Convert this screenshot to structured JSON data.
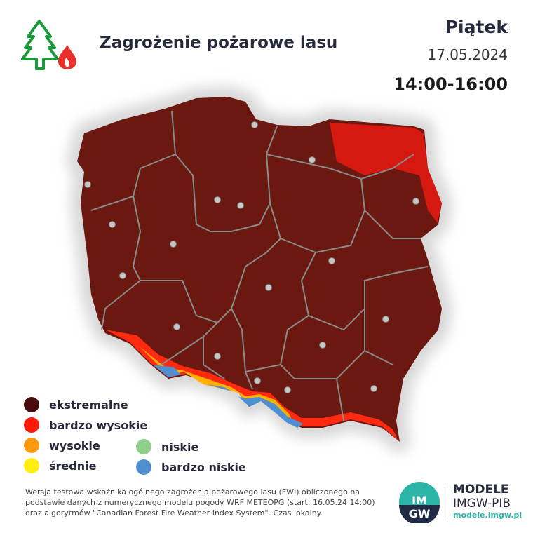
{
  "header": {
    "title": "Zagrożenie pożarowe lasu",
    "day": "Piątek",
    "date": "17.05.2024",
    "time_range": "14:00-16:00",
    "icon": "tree-fire-icon"
  },
  "legend": [
    {
      "label": "ekstremalne",
      "color": "#4a0c0a"
    },
    {
      "label": "bardzo wysokie",
      "color": "#ff1a0a"
    },
    {
      "label": "wysokie",
      "color": "#ff9a10"
    },
    {
      "label": "średnie",
      "color": "#ffee10"
    },
    {
      "label": "niskie",
      "color": "#8fcf8a"
    },
    {
      "label": "bardzo niskie",
      "color": "#4f8fd0"
    }
  ],
  "map": {
    "dominant_color": "#6b1810"
  },
  "footer": {
    "line1": "Wersja testowa wskaźnika ogólnego zagrożenia pożarowego lasu (FWI) obliczonego na",
    "line2": "podstawie danych z numerycznego modelu pogody WRF METEOPG (start: 16.05.24 14:00)",
    "line3": "oraz algorytmów \"Canadian Forest Fire Weather Index System\". Czas lokalny."
  },
  "brand": {
    "logo_text": "IMGW",
    "name1": "MODELE",
    "name2": "IMGW-PIB",
    "url": "modele.imgw.pl",
    "accent": "#2bb5a6"
  }
}
